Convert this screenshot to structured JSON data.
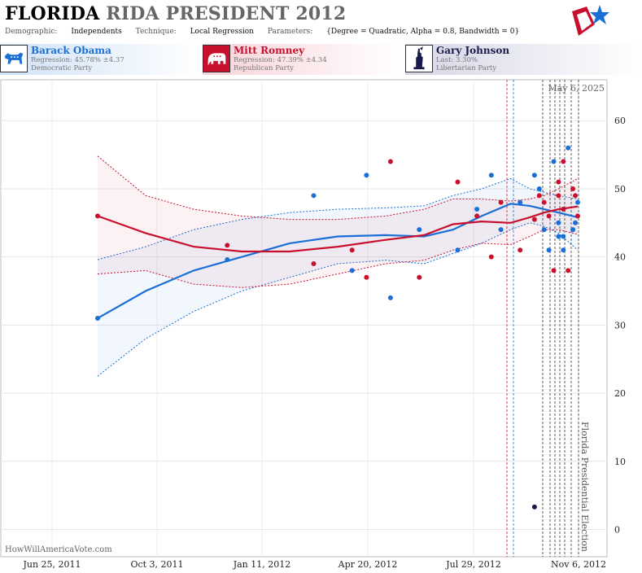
{
  "header": {
    "title_state": "FLORIDA",
    "title_rest": "RIDA PRESIDENT 2012",
    "demographic_label": "Demographic:",
    "demographic_value": "Independents",
    "technique_label": "Technique:",
    "technique_value": "Local Regression",
    "parameters_label": "Parameters:",
    "parameters_value": "{Degree = Quadratic, Alpha = 0.8, Bandwidth = 0}"
  },
  "candidates": [
    {
      "name": "Barack Obama",
      "line1": "Regression: 45.78% ±4.37",
      "line2": "Democratic Party",
      "color": "#1a6fd6",
      "icon": "donkey-icon"
    },
    {
      "name": "Mitt Romney",
      "line1": "Regression: 47.39% ±4.34",
      "line2": "Republican Party",
      "color": "#c8102e",
      "icon": "elephant-icon"
    },
    {
      "name": "Gary Johnson",
      "line1": "Last: 3.30%",
      "line2": "Libertarian Party",
      "color": "#1a1a4a",
      "icon": "statue-of-liberty-icon"
    }
  ],
  "chart_data": {
    "type": "scatter",
    "date_label": "May 6, 2025",
    "credit": "HowWillAmericaVote.com",
    "event_label": "Florida Presidential Election",
    "x_ticks": [
      "Jun 25, 2011",
      "Oct 3, 2011",
      "Jan 11, 2012",
      "Apr 20, 2012",
      "Jul 29, 2012",
      "Nov 6, 2012"
    ],
    "y_ticks": [
      0,
      10,
      20,
      30,
      40,
      50,
      60
    ],
    "ylim": [
      -4,
      66
    ],
    "obama_points": [
      [
        31,
        1
      ],
      [
        39.6,
        0.73
      ],
      [
        49,
        0.55
      ],
      [
        38,
        0.47
      ],
      [
        52,
        0.44
      ],
      [
        34,
        0.39
      ],
      [
        44,
        0.33
      ],
      [
        41,
        0.25
      ],
      [
        47,
        0.21
      ],
      [
        52,
        0.18
      ],
      [
        44,
        0.16
      ],
      [
        48,
        0.12
      ],
      [
        52,
        0.09
      ],
      [
        50,
        0.08
      ],
      [
        44,
        0.07
      ],
      [
        41,
        0.06
      ],
      [
        54,
        0.05
      ],
      [
        43,
        0.04
      ],
      [
        45,
        0.04
      ],
      [
        43,
        0.03
      ],
      [
        41,
        0.03
      ],
      [
        56,
        0.02
      ],
      [
        44,
        0.01
      ],
      [
        45,
        0.005
      ],
      [
        48,
        0
      ]
    ],
    "romney_points": [
      [
        46,
        1
      ],
      [
        41.7,
        0.73
      ],
      [
        39,
        0.55
      ],
      [
        41,
        0.47
      ],
      [
        37,
        0.44
      ],
      [
        54,
        0.39
      ],
      [
        37,
        0.33
      ],
      [
        51,
        0.25
      ],
      [
        46,
        0.21
      ],
      [
        40,
        0.18
      ],
      [
        48,
        0.16
      ],
      [
        41,
        0.12
      ],
      [
        45.5,
        0.09
      ],
      [
        49,
        0.08
      ],
      [
        48,
        0.07
      ],
      [
        46,
        0.06
      ],
      [
        38,
        0.05
      ],
      [
        51,
        0.04
      ],
      [
        49,
        0.04
      ],
      [
        54,
        0.03
      ],
      [
        47,
        0.03
      ],
      [
        38,
        0.02
      ],
      [
        50,
        0.01
      ],
      [
        49,
        0.005
      ],
      [
        46,
        0
      ]
    ],
    "johnson_points": [
      [
        3.3,
        0.09
      ]
    ],
    "obama_line": [
      [
        31,
        1
      ],
      [
        35,
        0.9
      ],
      [
        38,
        0.8
      ],
      [
        40,
        0.7
      ],
      [
        42,
        0.6
      ],
      [
        43,
        0.5
      ],
      [
        43.2,
        0.4
      ],
      [
        43,
        0.32
      ],
      [
        44,
        0.26
      ],
      [
        46,
        0.2
      ],
      [
        47.8,
        0.14
      ],
      [
        47.5,
        0.1
      ],
      [
        47,
        0.07
      ],
      [
        46.5,
        0.04
      ],
      [
        45.8,
        0
      ]
    ],
    "romney_line": [
      [
        46,
        1
      ],
      [
        43.5,
        0.9
      ],
      [
        41.5,
        0.8
      ],
      [
        40.8,
        0.7
      ],
      [
        40.8,
        0.6
      ],
      [
        41.5,
        0.5
      ],
      [
        42.5,
        0.4
      ],
      [
        43.2,
        0.32
      ],
      [
        44.8,
        0.26
      ],
      [
        45.2,
        0.2
      ],
      [
        45,
        0.14
      ],
      [
        45.8,
        0.1
      ],
      [
        46.5,
        0.07
      ],
      [
        47,
        0.04
      ],
      [
        47.4,
        0
      ]
    ],
    "obama_upper": [
      [
        39.6,
        1
      ],
      [
        41.5,
        0.9
      ],
      [
        44,
        0.8
      ],
      [
        45.5,
        0.7
      ],
      [
        46.5,
        0.6
      ],
      [
        47,
        0.5
      ],
      [
        47.2,
        0.4
      ],
      [
        47.5,
        0.32
      ],
      [
        49,
        0.26
      ],
      [
        50,
        0.2
      ],
      [
        51.5,
        0.14
      ],
      [
        50,
        0.1
      ],
      [
        49.5,
        0.07
      ],
      [
        49,
        0.04
      ],
      [
        48.5,
        0
      ]
    ],
    "obama_lower": [
      [
        22.5,
        1
      ],
      [
        28,
        0.9
      ],
      [
        32,
        0.8
      ],
      [
        35,
        0.7
      ],
      [
        37,
        0.6
      ],
      [
        39,
        0.5
      ],
      [
        39.5,
        0.4
      ],
      [
        39,
        0.32
      ],
      [
        40.5,
        0.26
      ],
      [
        42,
        0.2
      ],
      [
        44,
        0.14
      ],
      [
        45,
        0.1
      ],
      [
        44.5,
        0.07
      ],
      [
        43.5,
        0.04
      ],
      [
        41,
        0
      ]
    ],
    "romney_upper": [
      [
        54.8,
        1
      ],
      [
        49,
        0.9
      ],
      [
        47,
        0.8
      ],
      [
        46,
        0.7
      ],
      [
        45.5,
        0.6
      ],
      [
        45.5,
        0.5
      ],
      [
        46,
        0.4
      ],
      [
        47,
        0.32
      ],
      [
        48.5,
        0.26
      ],
      [
        48.5,
        0.2
      ],
      [
        48.2,
        0.14
      ],
      [
        48.5,
        0.1
      ],
      [
        49,
        0.07
      ],
      [
        50,
        0.04
      ],
      [
        51.5,
        0
      ]
    ],
    "romney_lower": [
      [
        37.5,
        1
      ],
      [
        38,
        0.9
      ],
      [
        36,
        0.8
      ],
      [
        35.5,
        0.7
      ],
      [
        36,
        0.6
      ],
      [
        37.5,
        0.5
      ],
      [
        39,
        0.4
      ],
      [
        39.5,
        0.32
      ],
      [
        41,
        0.26
      ],
      [
        42,
        0.2
      ],
      [
        41.8,
        0.14
      ],
      [
        43,
        0.1
      ],
      [
        44,
        0.07
      ],
      [
        44,
        0.04
      ],
      [
        43.3,
        0
      ]
    ]
  }
}
